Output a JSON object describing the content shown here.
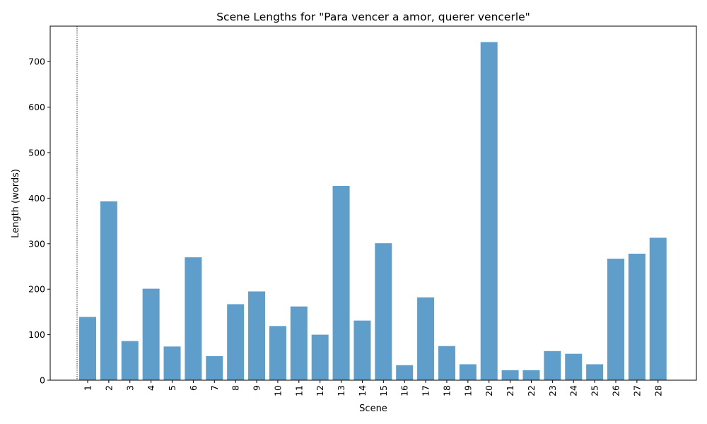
{
  "chart_data": {
    "type": "bar",
    "title": "Scene Lengths for \"Para vencer a amor, querer vencerle\"",
    "xlabel": "Scene",
    "ylabel": "Length (words)",
    "categories": [
      "1",
      "2",
      "3",
      "4",
      "5",
      "6",
      "7",
      "8",
      "9",
      "10",
      "11",
      "12",
      "13",
      "14",
      "15",
      "16",
      "17",
      "18",
      "19",
      "20",
      "21",
      "22",
      "23",
      "24",
      "25",
      "26",
      "27",
      "28"
    ],
    "values": [
      139,
      393,
      86,
      201,
      74,
      270,
      53,
      167,
      195,
      119,
      162,
      100,
      427,
      131,
      301,
      33,
      182,
      75,
      35,
      743,
      22,
      22,
      64,
      58,
      35,
      267,
      278,
      313
    ],
    "ylim": [
      0,
      778
    ],
    "yticks": [
      0,
      100,
      200,
      300,
      400,
      500,
      600,
      700
    ],
    "bar_color": "#5f9ecb",
    "grid": false,
    "reference_line": {
      "style": "dotted",
      "color": "#000000"
    }
  }
}
